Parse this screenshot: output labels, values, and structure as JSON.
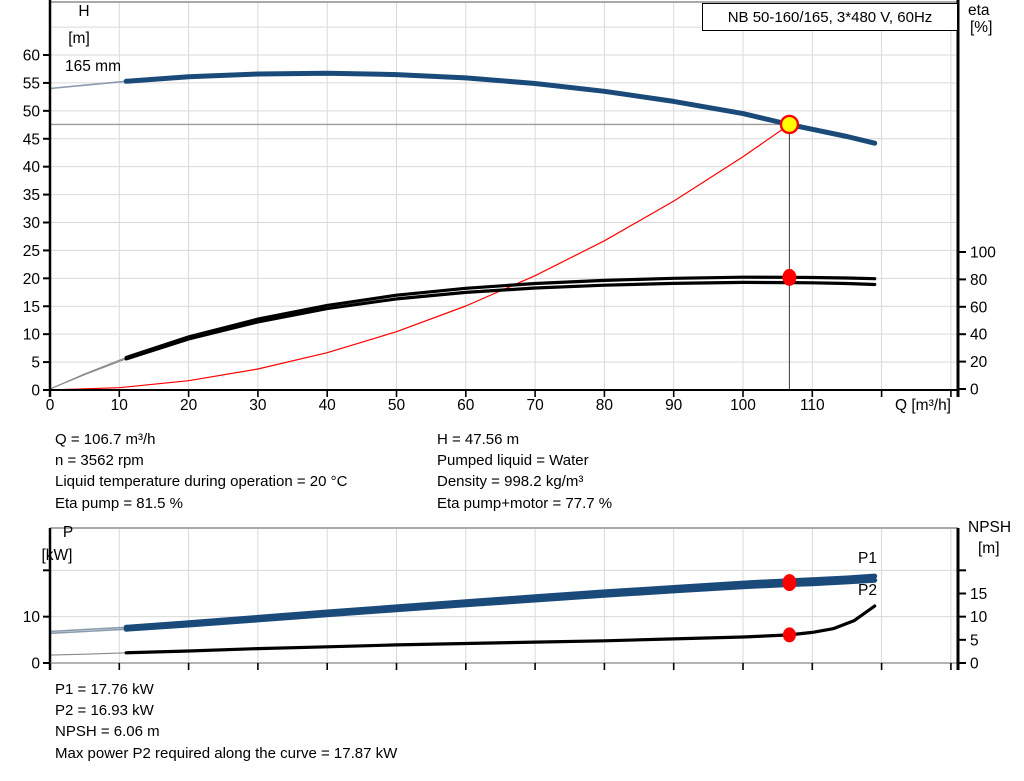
{
  "title_box": "NB 50-160/165, 3*480 V, 60Hz",
  "info_top": {
    "left": [
      "Q = 106.7 m³/h",
      "n = 3562 rpm",
      "Liquid temperature during operation = 20 °C",
      "Eta pump = 81.5 %"
    ],
    "right": [
      "H = 47.56 m",
      "Pumped liquid = Water",
      "Density = 998.2 kg/m³",
      "Eta pump+motor = 77.7 %"
    ]
  },
  "info_bottom": [
    "P1 = 17.76 kW",
    "P2 = 16.93 kW",
    "NPSH = 6.06 m",
    "Max power P2 required along the curve = 17.87 kW"
  ],
  "colors": {
    "curve_blue": "#1a4a7a",
    "curve_blue_thin": "#8a9bb0",
    "curve_black": "#000000",
    "curve_black_thin": "#8a8a8a",
    "red": "#ff0000",
    "yellow": "#ffff00",
    "grid": "#d9d9d9",
    "border_gray": "#a9a9a9",
    "duty_hline": "#9b9b9b",
    "duty_vline": "#4d4d4d",
    "label_blue": "#2e5ea7",
    "axis": "#000000"
  },
  "chart_data": [
    {
      "type": "line",
      "name": "pump-performance-curve",
      "title": "NB 50-160/165, 3*480 V, 60Hz",
      "xlabel": "Q [m³/h]",
      "x_ticks": [
        [
          0,
          "0"
        ],
        [
          10,
          "10"
        ],
        [
          20,
          "20"
        ],
        [
          30,
          "30"
        ],
        [
          40,
          "40"
        ],
        [
          50,
          "50"
        ],
        [
          60,
          "60"
        ],
        [
          70,
          "70"
        ],
        [
          80,
          "80"
        ],
        [
          90,
          "90"
        ],
        [
          100,
          "100"
        ],
        [
          110,
          "110"
        ],
        [
          120,
          ""
        ],
        [
          130,
          ""
        ]
      ],
      "x_range": [
        0,
        131
      ],
      "left_axis": {
        "label1": "H",
        "label2": "[m]",
        "ticks": [
          [
            0,
            "0"
          ],
          [
            5,
            "5"
          ],
          [
            10,
            "10"
          ],
          [
            15,
            "15"
          ],
          [
            20,
            "20"
          ],
          [
            25,
            "25"
          ],
          [
            30,
            "30"
          ],
          [
            35,
            "35"
          ],
          [
            40,
            "40"
          ],
          [
            45,
            "45"
          ],
          [
            50,
            "50"
          ],
          [
            55,
            "55"
          ],
          [
            60,
            "60"
          ]
        ],
        "range": [
          0,
          69.5
        ],
        "grid_step": 5
      },
      "right_axis": {
        "label1": "eta",
        "label2": "[%]",
        "ticks": [
          [
            0,
            "0"
          ],
          [
            20,
            "20"
          ],
          [
            40,
            "40"
          ],
          [
            60,
            "60"
          ],
          [
            80,
            "80"
          ],
          [
            100,
            "100"
          ]
        ],
        "range": [
          0,
          100
        ]
      },
      "curve_label": "165 mm",
      "legend_position": "none",
      "grid": true,
      "duty_point": {
        "Q": 106.7,
        "H": 47.56,
        "eta_pump": 81.5
      },
      "series": [
        {
          "name": "system-curve",
          "axis": "left",
          "style": "red-thin",
          "points": [
            [
              0,
              0
            ],
            [
              10,
              0.42
            ],
            [
              20,
              1.67
            ],
            [
              30,
              3.76
            ],
            [
              40,
              6.68
            ],
            [
              50,
              10.44
            ],
            [
              60,
              15.04
            ],
            [
              70,
              20.47
            ],
            [
              80,
              26.73
            ],
            [
              90,
              33.83
            ],
            [
              100,
              41.77
            ],
            [
              106.7,
              47.56
            ]
          ]
        },
        {
          "name": "eta-pump",
          "axis": "right",
          "style": "black-thick",
          "split_q": 11,
          "points": [
            [
              0,
              0
            ],
            [
              5,
              11
            ],
            [
              11,
              23
            ],
            [
              20,
              38
            ],
            [
              30,
              51
            ],
            [
              40,
              61
            ],
            [
              50,
              68.5
            ],
            [
              60,
              73.5
            ],
            [
              70,
              77
            ],
            [
              80,
              79.3
            ],
            [
              90,
              80.8
            ],
            [
              100,
              81.6
            ],
            [
              106.7,
              81.5
            ],
            [
              110,
              81.4
            ],
            [
              115,
              81.0
            ],
            [
              119,
              80.5
            ]
          ]
        },
        {
          "name": "eta-pump-motor",
          "axis": "right",
          "style": "black-thick",
          "split_q": 11,
          "points": [
            [
              0,
              0
            ],
            [
              5,
              10.5
            ],
            [
              11,
              22
            ],
            [
              20,
              36.5
            ],
            [
              30,
              49
            ],
            [
              40,
              58.7
            ],
            [
              50,
              65.8
            ],
            [
              60,
              70.5
            ],
            [
              70,
              73.7
            ],
            [
              80,
              75.8
            ],
            [
              90,
              77.1
            ],
            [
              100,
              77.8
            ],
            [
              106.7,
              77.7
            ],
            [
              110,
              77.5
            ],
            [
              115,
              77.0
            ],
            [
              119,
              76.3
            ]
          ]
        },
        {
          "name": "head-165mm",
          "axis": "left",
          "style": "blue-thick",
          "split_q": 11,
          "points": [
            [
              0,
              54.0
            ],
            [
              5,
              54.6
            ],
            [
              11,
              55.3
            ],
            [
              20,
              56.1
            ],
            [
              30,
              56.6
            ],
            [
              40,
              56.75
            ],
            [
              50,
              56.5
            ],
            [
              60,
              55.9
            ],
            [
              70,
              54.9
            ],
            [
              80,
              53.5
            ],
            [
              90,
              51.7
            ],
            [
              100,
              49.5
            ],
            [
              106.7,
              47.56
            ],
            [
              110,
              46.7
            ],
            [
              115,
              45.4
            ],
            [
              119,
              44.2
            ]
          ]
        }
      ]
    },
    {
      "type": "line",
      "name": "power-npsh-curve",
      "xlabel": "",
      "x_ticks": [
        [
          0,
          ""
        ],
        [
          10,
          ""
        ],
        [
          20,
          ""
        ],
        [
          30,
          ""
        ],
        [
          40,
          ""
        ],
        [
          50,
          ""
        ],
        [
          60,
          ""
        ],
        [
          70,
          ""
        ],
        [
          80,
          ""
        ],
        [
          90,
          ""
        ],
        [
          100,
          ""
        ],
        [
          110,
          ""
        ],
        [
          120,
          ""
        ],
        [
          130,
          ""
        ]
      ],
      "x_range": [
        0,
        131
      ],
      "left_axis": {
        "label1": "P",
        "label2": "[kW]",
        "ticks": [
          [
            0,
            "0"
          ],
          [
            10,
            "10"
          ],
          [
            20,
            ""
          ]
        ],
        "range": [
          0,
          29
        ],
        "grid_step": 10
      },
      "right_axis": {
        "label1": "NPSH",
        "label2": "[m]",
        "ticks": [
          [
            0,
            "0"
          ],
          [
            5,
            "5"
          ],
          [
            10,
            "10"
          ],
          [
            15,
            "15"
          ],
          [
            20,
            ""
          ]
        ],
        "range": [
          0,
          29
        ]
      },
      "grid": true,
      "duty_point": {
        "Q": 106.7,
        "P1": 17.76,
        "P2": 16.93,
        "NPSH": 6.06
      },
      "series": [
        {
          "name": "P1",
          "label": "P1",
          "axis": "left",
          "style": "blue-thick",
          "split_q": 11,
          "points": [
            [
              0,
              6.8
            ],
            [
              5,
              7.2
            ],
            [
              11,
              7.7
            ],
            [
              20,
              8.7
            ],
            [
              30,
              9.85
            ],
            [
              40,
              11.0
            ],
            [
              50,
              12.1
            ],
            [
              60,
              13.2
            ],
            [
              70,
              14.3
            ],
            [
              80,
              15.35
            ],
            [
              90,
              16.3
            ],
            [
              100,
              17.25
            ],
            [
              106.7,
              17.76
            ],
            [
              110,
              17.95
            ],
            [
              115,
              18.35
            ],
            [
              119,
              18.75
            ]
          ]
        },
        {
          "name": "P2",
          "label": "P2",
          "axis": "left",
          "style": "blue-thick",
          "split_q": 11,
          "points": [
            [
              0,
              6.4
            ],
            [
              5,
              6.8
            ],
            [
              11,
              7.3
            ],
            [
              20,
              8.2
            ],
            [
              30,
              9.3
            ],
            [
              40,
              10.4
            ],
            [
              50,
              11.5
            ],
            [
              60,
              12.55
            ],
            [
              70,
              13.6
            ],
            [
              80,
              14.6
            ],
            [
              90,
              15.55
            ],
            [
              100,
              16.45
            ],
            [
              106.7,
              16.93
            ],
            [
              110,
              17.1
            ],
            [
              115,
              17.5
            ],
            [
              119,
              17.87
            ]
          ]
        },
        {
          "name": "NPSH",
          "axis": "left",
          "style": "black-thick",
          "split_q": 11,
          "points": [
            [
              0,
              1.7
            ],
            [
              5,
              1.9
            ],
            [
              11,
              2.2
            ],
            [
              20,
              2.6
            ],
            [
              30,
              3.1
            ],
            [
              40,
              3.5
            ],
            [
              50,
              3.9
            ],
            [
              60,
              4.2
            ],
            [
              70,
              4.5
            ],
            [
              80,
              4.8
            ],
            [
              90,
              5.2
            ],
            [
              100,
              5.6
            ],
            [
              106.7,
              6.06
            ],
            [
              110,
              6.6
            ],
            [
              113,
              7.4
            ],
            [
              116,
              9.1
            ],
            [
              119,
              12.3
            ]
          ]
        }
      ]
    }
  ]
}
